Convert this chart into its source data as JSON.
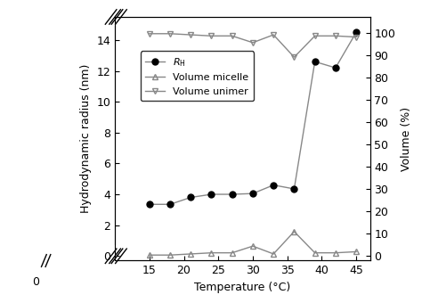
{
  "rh_temp": [
    15,
    18,
    21,
    24,
    27,
    30,
    33,
    36,
    39,
    42,
    45
  ],
  "rh_values": [
    3.35,
    3.35,
    3.8,
    4.0,
    4.0,
    4.05,
    4.6,
    4.35,
    12.6,
    12.2,
    14.5
  ],
  "micelle_temp": [
    15,
    18,
    21,
    24,
    27,
    30,
    33,
    36,
    39,
    42,
    45
  ],
  "micelle_values": [
    0.5,
    0.5,
    1.0,
    1.5,
    1.5,
    4.5,
    1.0,
    11.0,
    1.5,
    1.5,
    2.0
  ],
  "unimer_temp": [
    15,
    18,
    21,
    24,
    27,
    30,
    33,
    36,
    39,
    42,
    45
  ],
  "unimer_values": [
    99.5,
    99.5,
    99.0,
    98.5,
    98.5,
    95.5,
    99.0,
    89.0,
    98.5,
    98.5,
    98.0
  ],
  "xlabel": "Temperature (°C)",
  "ylabel_left": "Hydrodynamic radius (nm)",
  "ylabel_right": "Volume (%)",
  "xlim": [
    10,
    47
  ],
  "ylim_left": [
    -0.3,
    15.5
  ],
  "ylim_right": [
    -2,
    107
  ],
  "yticks_left": [
    0,
    2,
    4,
    6,
    8,
    10,
    12,
    14
  ],
  "yticks_right": [
    0,
    10,
    20,
    30,
    40,
    50,
    60,
    70,
    80,
    90,
    100
  ],
  "xticks": [
    15,
    20,
    25,
    30,
    35,
    40,
    45
  ],
  "line_color": "#888888",
  "marker_rh": "o",
  "marker_micelle": "^",
  "marker_unimer": "v",
  "marker_size": 5,
  "linewidth": 1.0,
  "legend_labels": [
    "$R_\\mathrm{H}$",
    "Volume micelle",
    "Volume unimer"
  ],
  "title": ""
}
